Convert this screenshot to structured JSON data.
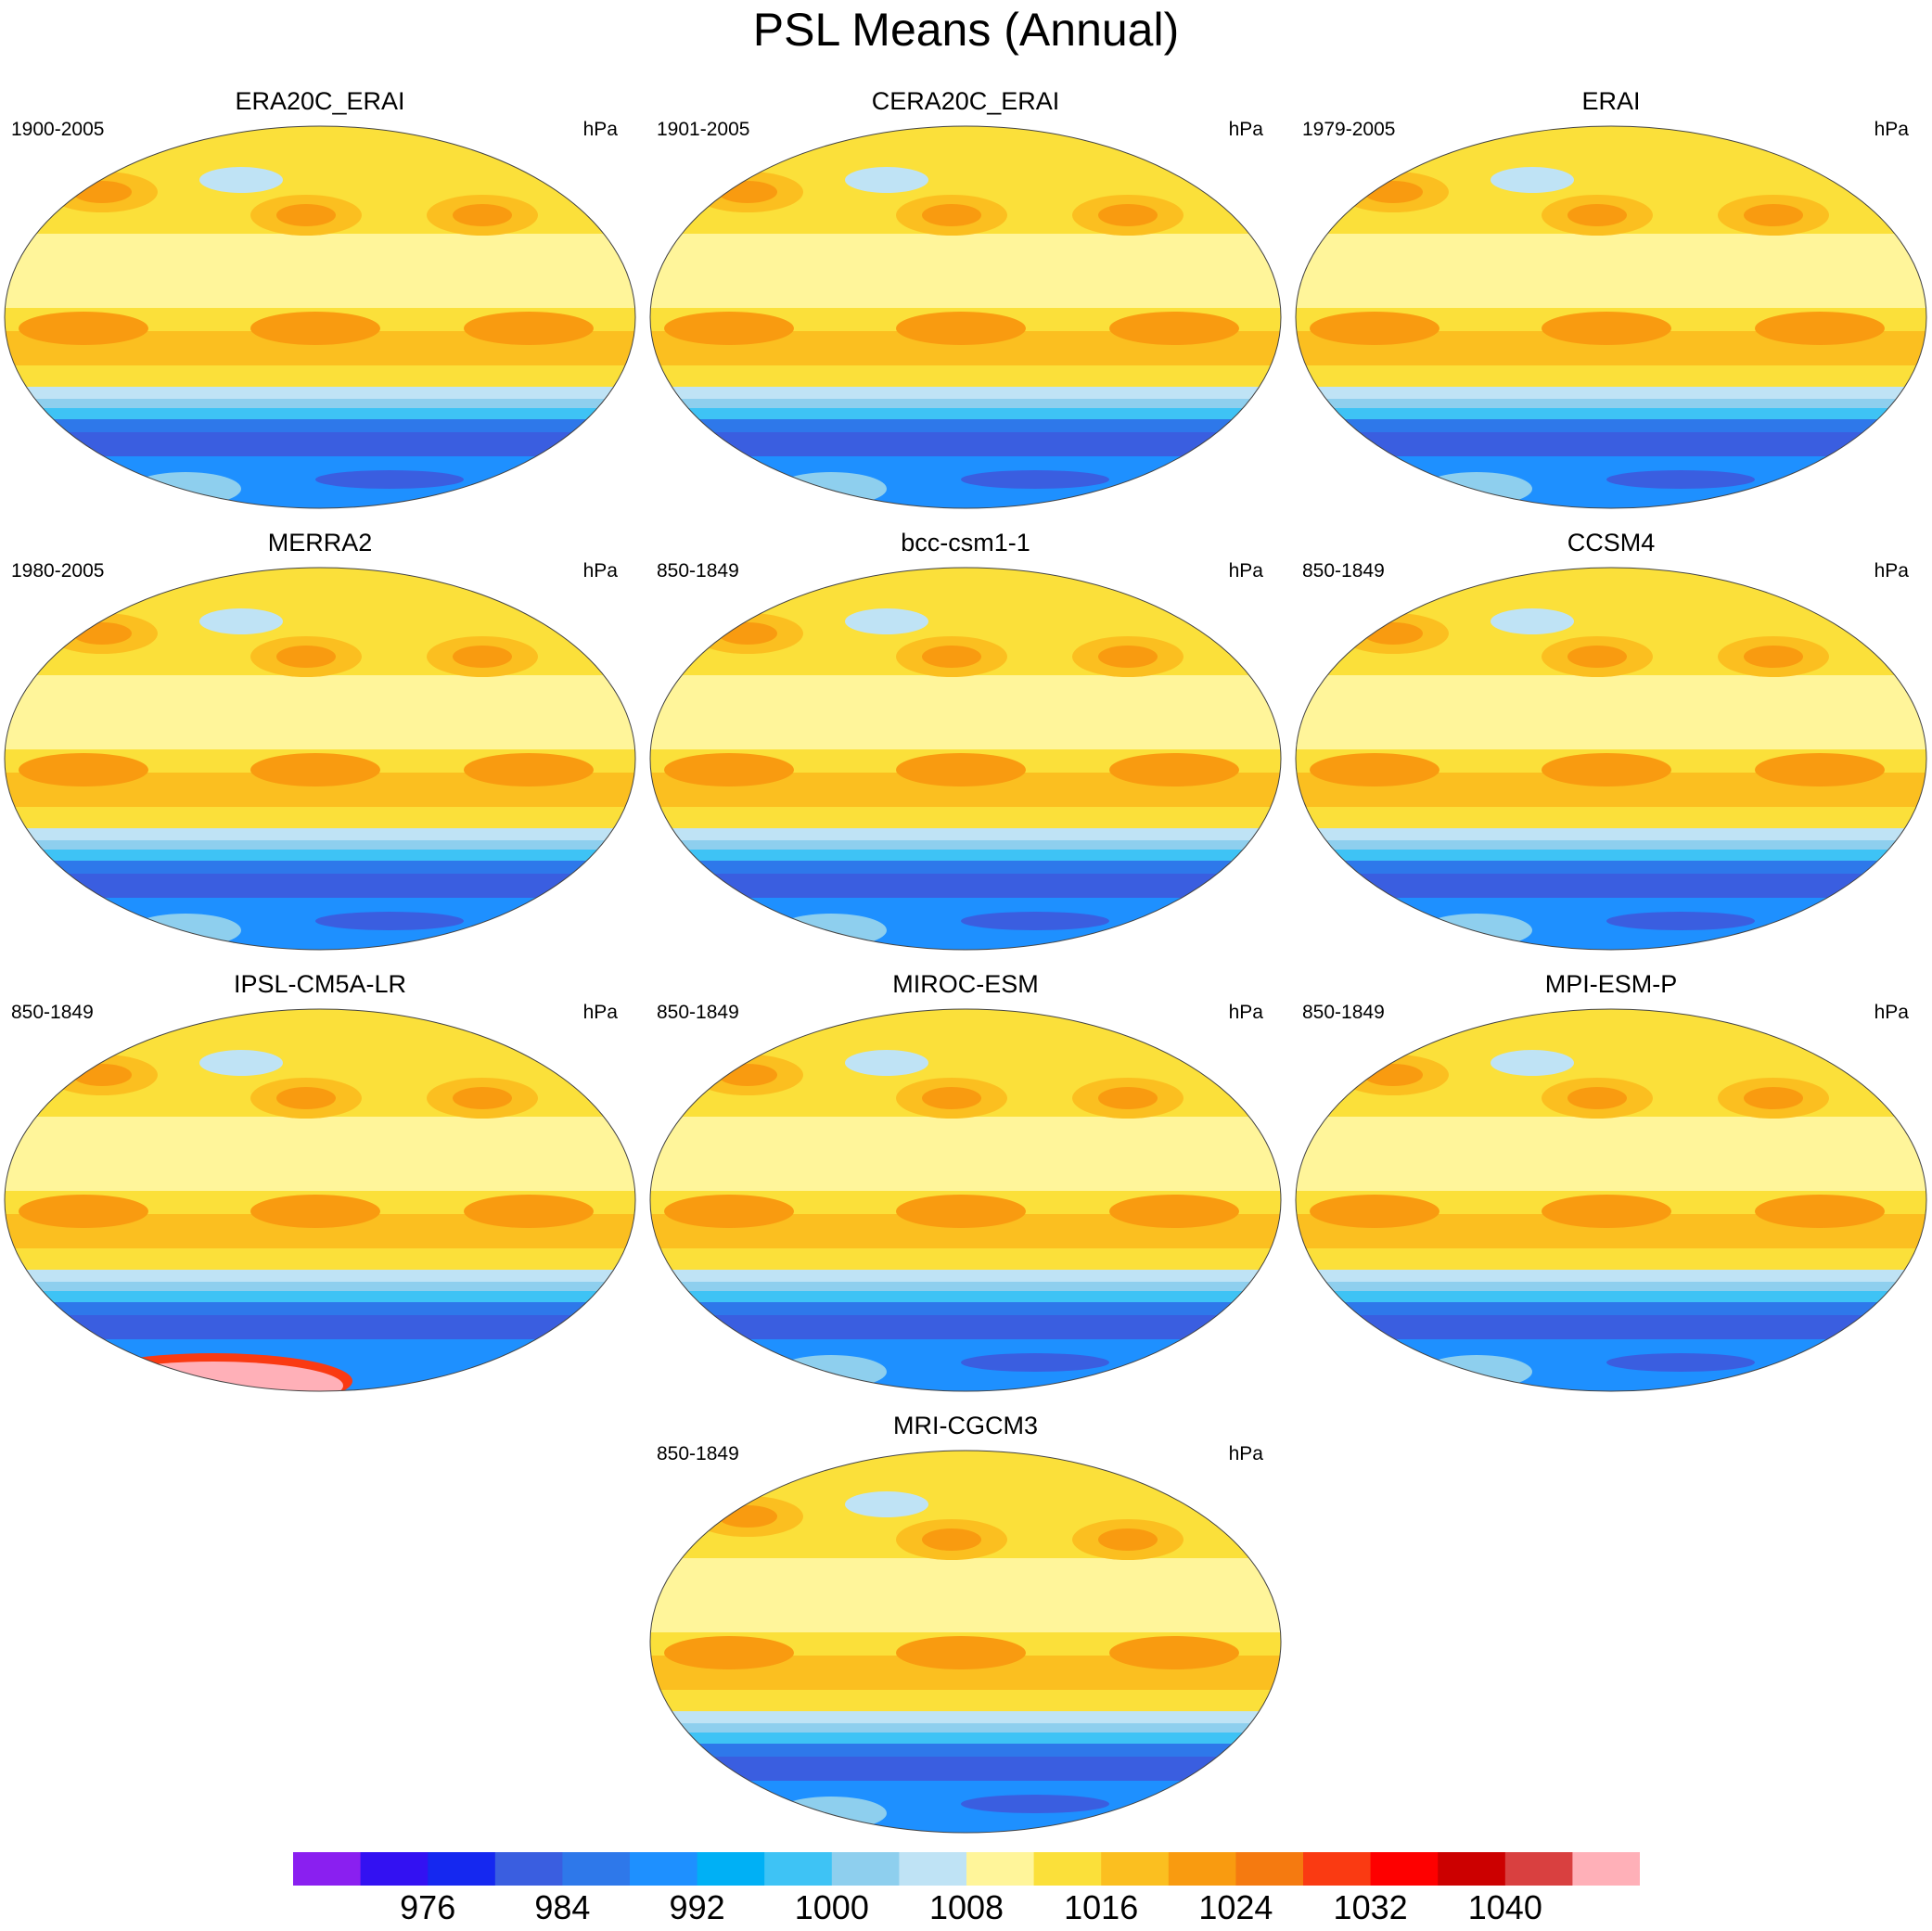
{
  "title": "PSL Means (Annual)",
  "chart_data": {
    "type": "filled-contour-map-panels",
    "projection": "robinson",
    "central_longitude": 180,
    "units": "hPa",
    "contour_levels": [
      972,
      976,
      980,
      984,
      988,
      992,
      996,
      1000,
      1004,
      1008,
      1012,
      1016,
      1020,
      1024,
      1028,
      1032,
      1036,
      1040,
      1044
    ],
    "colorbar_tick_labels": [
      "976",
      "984",
      "992",
      "1000",
      "1008",
      "1016",
      "1024",
      "1032",
      "1040"
    ],
    "colorbar_colors": [
      "#8a1ff0",
      "#3311f2",
      "#1528f0",
      "#3a5ee0",
      "#2e78ea",
      "#1e90ff",
      "#00b0f5",
      "#3ec3f5",
      "#8ecfee",
      "#bfe3f5",
      "#fff59a",
      "#fbe03a",
      "#fbbf20",
      "#f99b10",
      "#f57a10",
      "#fa3a12",
      "#fe0000",
      "#cc0000",
      "#d94040",
      "#ffb0b8"
    ],
    "panels": [
      {
        "title": "ERA20C_ERAI",
        "period": "1900-2005",
        "units": "hPa"
      },
      {
        "title": "CERA20C_ERAI",
        "period": "1901-2005",
        "units": "hPa"
      },
      {
        "title": "ERAI",
        "period": "1979-2005",
        "units": "hPa"
      },
      {
        "title": "MERRA2",
        "period": "1980-2005",
        "units": "hPa"
      },
      {
        "title": "bcc-csm1-1",
        "period": "850-1849",
        "units": "hPa"
      },
      {
        "title": "CCSM4",
        "period": "850-1849",
        "units": "hPa"
      },
      {
        "title": "IPSL-CM5A-LR",
        "period": "850-1849",
        "units": "hPa"
      },
      {
        "title": "MIROC-ESM",
        "period": "850-1849",
        "units": "hPa"
      },
      {
        "title": "MPI-ESM-P",
        "period": "850-1849",
        "units": "hPa"
      },
      {
        "title": "MRI-CGCM3",
        "period": "850-1849",
        "units": "hPa"
      }
    ]
  }
}
